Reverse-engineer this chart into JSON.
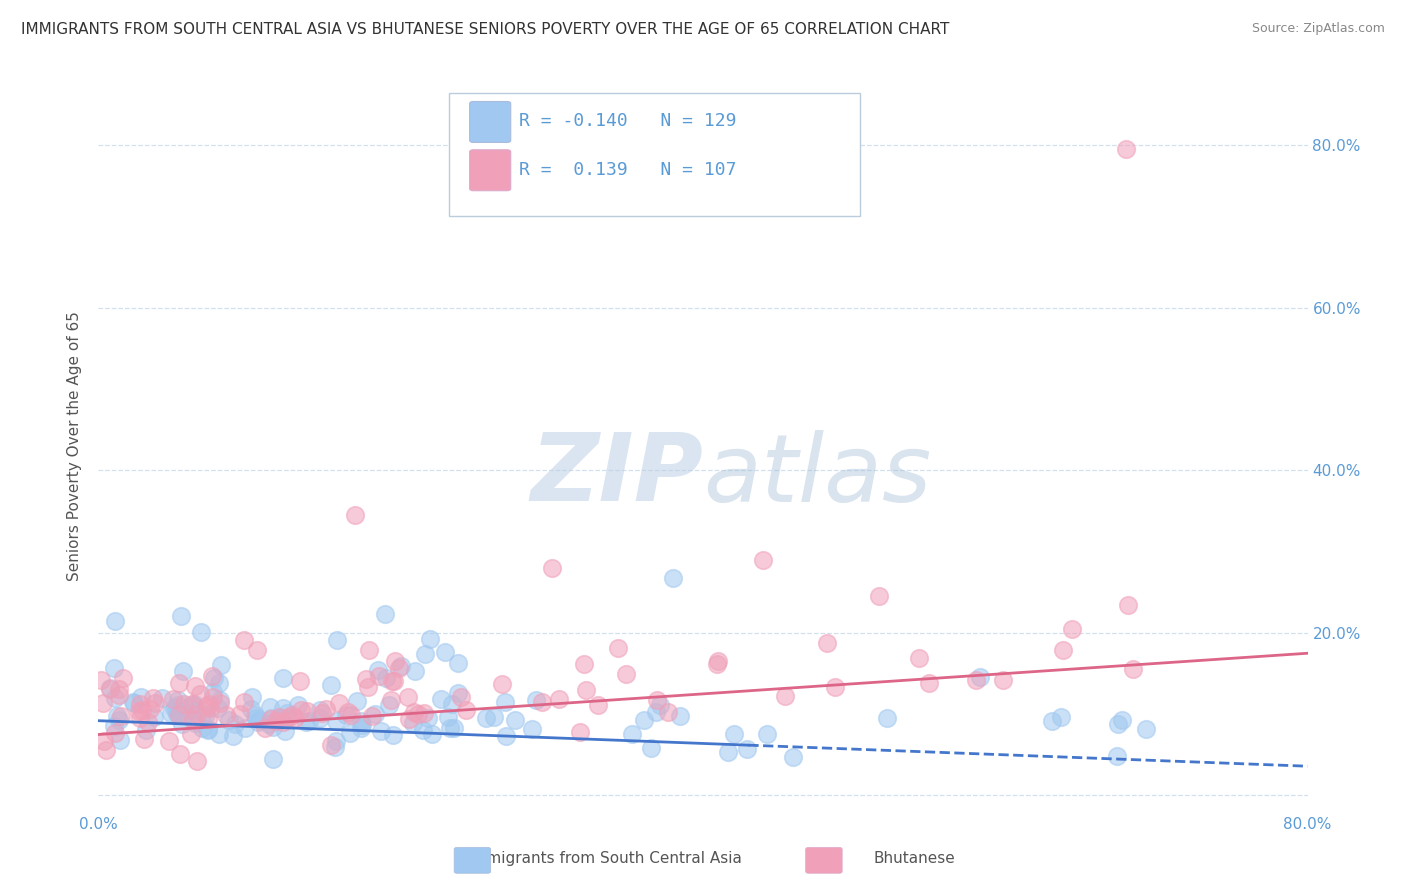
{
  "title": "IMMIGRANTS FROM SOUTH CENTRAL ASIA VS BHUTANESE SENIORS POVERTY OVER THE AGE OF 65 CORRELATION CHART",
  "source": "Source: ZipAtlas.com",
  "ylabel": "Seniors Poverty Over the Age of 65",
  "ytick_values": [
    0.0,
    0.2,
    0.4,
    0.6,
    0.8
  ],
  "ytick_labels": [
    "",
    "20.0%",
    "40.0%",
    "60.0%",
    "80.0%"
  ],
  "xlim": [
    0.0,
    0.8
  ],
  "ylim": [
    -0.02,
    0.88
  ],
  "blue_R": "-0.140",
  "blue_N": "129",
  "pink_R": "0.139",
  "pink_N": "107",
  "blue_color": "#a0c8f0",
  "pink_color": "#f0a0b8",
  "blue_line_color": "#4477cc",
  "pink_line_color": "#dd6688",
  "watermark_zip": "ZIP",
  "watermark_atlas": "atlas",
  "legend_blue_label": "Immigrants from South Central Asia",
  "legend_pink_label": "Bhutanese",
  "title_fontsize": 11,
  "tick_label_color": "#5b9bd5",
  "ylabel_color": "#555555",
  "grid_color": "#ccddee",
  "source_color": "#888888"
}
